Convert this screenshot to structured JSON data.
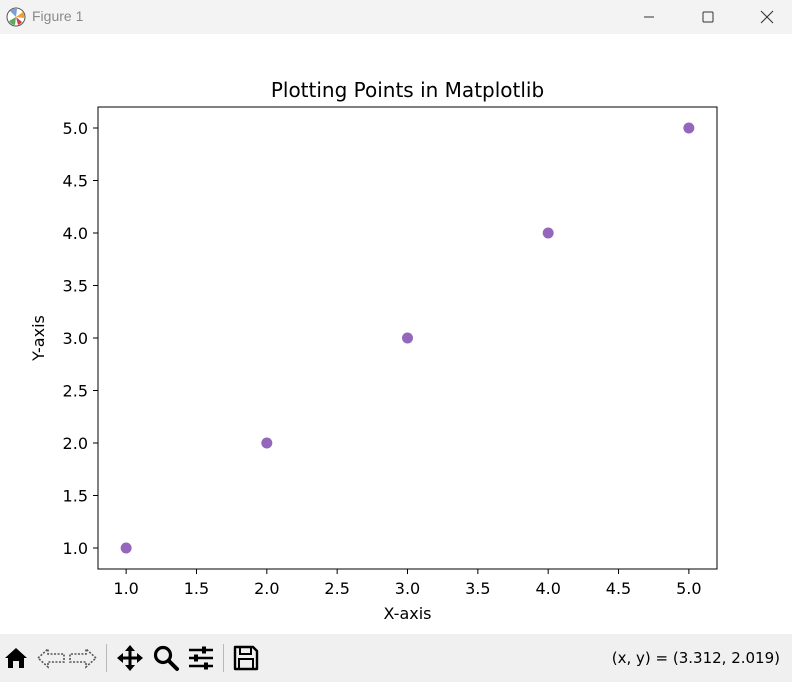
{
  "window": {
    "title": "Figure 1"
  },
  "toolbar": {
    "buttons": [
      "home-icon",
      "back-icon",
      "forward-icon",
      "pan-icon",
      "zoom-icon",
      "configure-subplots-icon",
      "save-icon"
    ],
    "coords_text": "(x, y) = (3.312, 2.019)"
  },
  "colors": {
    "marker": "#9467bd",
    "titlebar": "#f3f3f3",
    "toolbar": "#f0f0f0"
  },
  "chart_data": {
    "type": "scatter",
    "title": "Plotting Points in Matplotlib",
    "xlabel": "X-axis",
    "ylabel": "Y-axis",
    "x": [
      1,
      2,
      3,
      4,
      5
    ],
    "y": [
      1,
      2,
      3,
      4,
      5
    ],
    "xlim": [
      0.8,
      5.2
    ],
    "ylim": [
      0.8,
      5.2
    ],
    "xticks": [
      1.0,
      1.5,
      2.0,
      2.5,
      3.0,
      3.5,
      4.0,
      4.5,
      5.0
    ],
    "xtick_labels": [
      "1.0",
      "1.5",
      "2.0",
      "2.5",
      "3.0",
      "3.5",
      "4.0",
      "4.5",
      "5.0"
    ],
    "yticks": [
      1.0,
      1.5,
      2.0,
      2.5,
      3.0,
      3.5,
      4.0,
      4.5,
      5.0
    ],
    "ytick_labels": [
      "1.0",
      "1.5",
      "2.0",
      "2.5",
      "3.0",
      "3.5",
      "4.0",
      "4.5",
      "5.0"
    ],
    "grid": false,
    "legend": "none"
  }
}
